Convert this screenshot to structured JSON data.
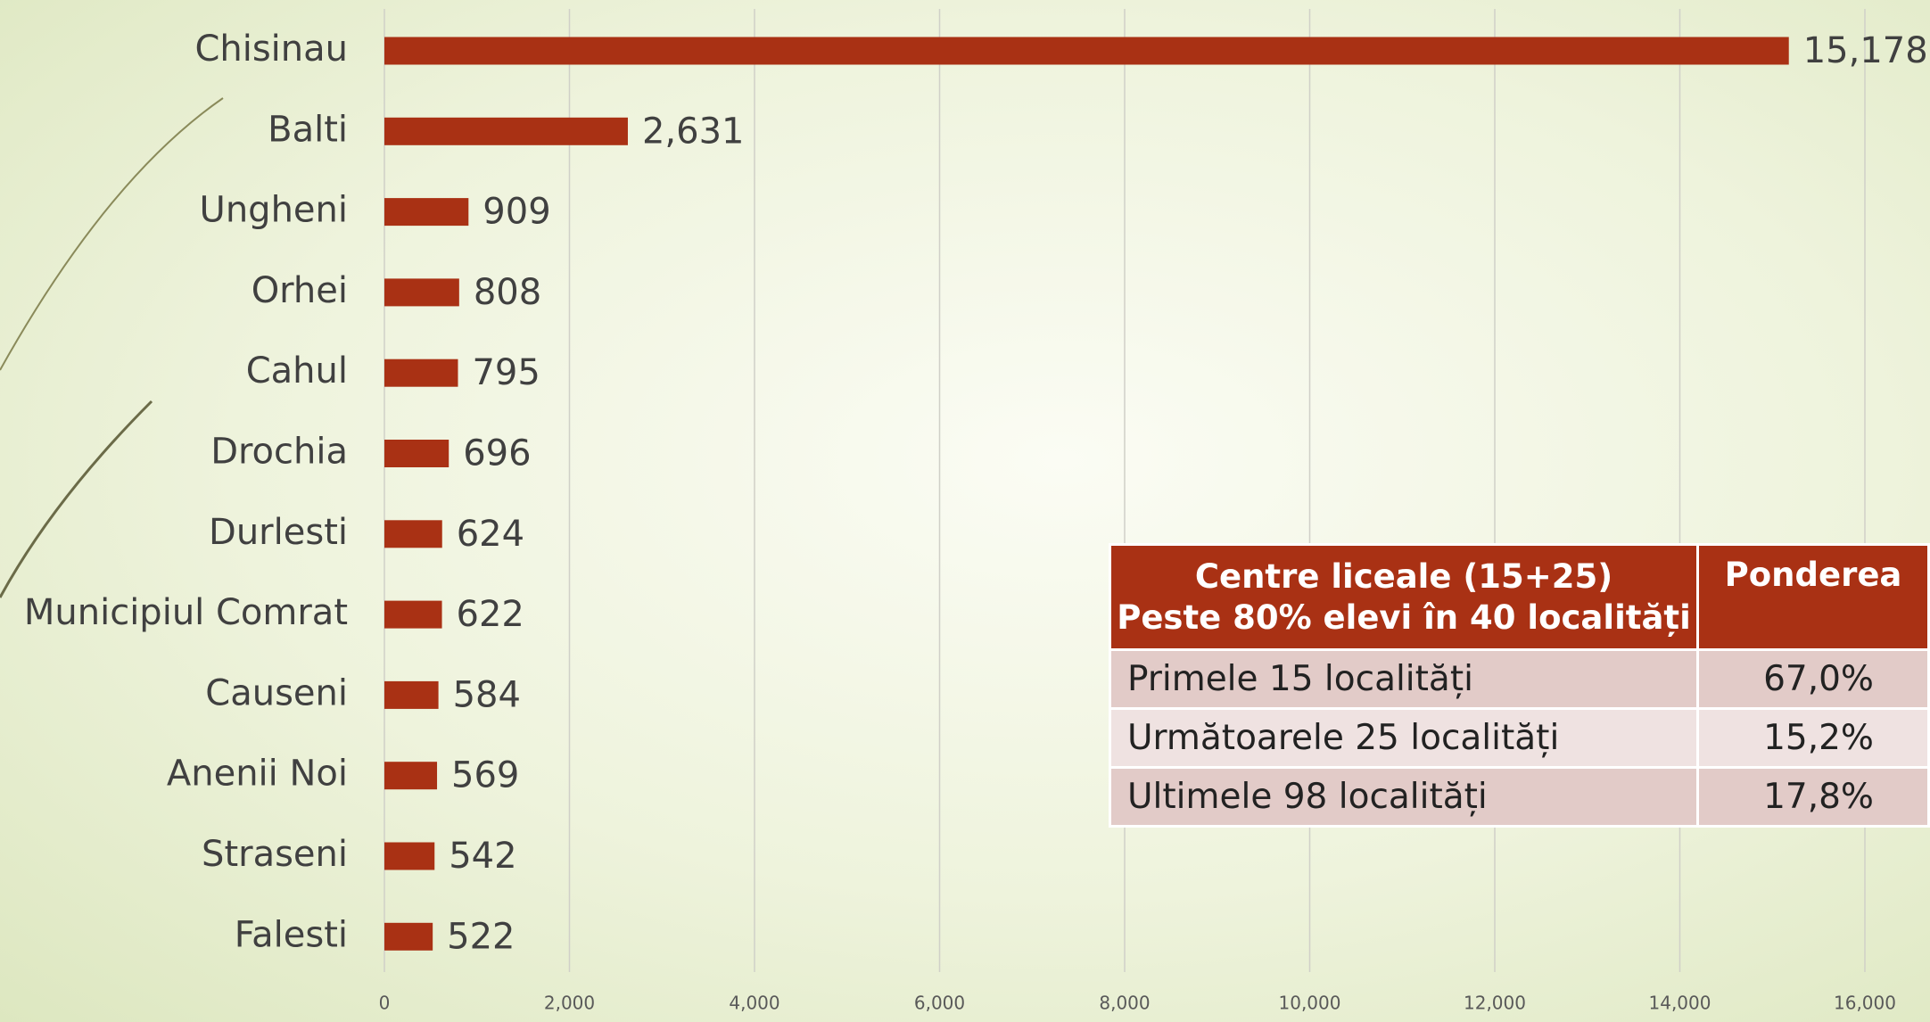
{
  "chart_data": {
    "type": "bar",
    "orientation": "horizontal",
    "categories": [
      "Chisinau",
      "Balti",
      "Ungheni",
      "Orhei",
      "Cahul",
      "Drochia",
      "Durlesti",
      "Municipiul Comrat",
      "Causeni",
      "Anenii Noi",
      "Straseni",
      "Falesti"
    ],
    "values": [
      15178,
      2631,
      909,
      808,
      795,
      696,
      624,
      622,
      584,
      569,
      542,
      522
    ],
    "value_labels": [
      "15,178",
      "2,631",
      "909",
      "808",
      "795",
      "696",
      "624",
      "622",
      "584",
      "569",
      "542",
      "522"
    ],
    "color": "#a93114",
    "xlim": [
      0,
      16000
    ],
    "xticks": [
      0,
      {
        "value": 2000,
        "label": "2,000"
      },
      {
        "value": 4000,
        "label": "4,000"
      },
      {
        "value": 6000,
        "label": "6,000"
      },
      {
        "value": 8000,
        "label": "8,000"
      },
      {
        "value": 10000,
        "label": "10,000"
      },
      {
        "value": 12000,
        "label": "12,000"
      },
      {
        "value": 14000,
        "label": "14,000"
      },
      {
        "value": 16000,
        "label": "16,000"
      }
    ],
    "grid": true
  },
  "table": {
    "header": {
      "title_lines": [
        "Centre liceale (15+25)",
        "Peste 80% elevi în 40 localități"
      ],
      "share": "Ponderea"
    },
    "rows": [
      [
        "Primele 15 localități",
        "67,0%"
      ],
      [
        "Următoarele 25 localități",
        "15,2%"
      ],
      [
        "Ultimele 98 localități",
        "17,8%"
      ]
    ]
  }
}
